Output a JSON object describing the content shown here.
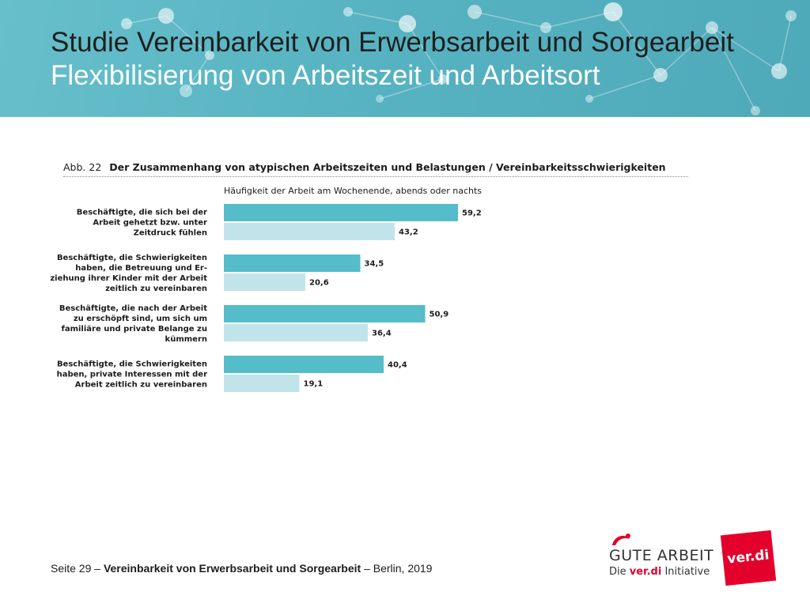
{
  "header": {
    "title": "Studie Vereinbarkeit von Erwerbsarbeit und Sorgearbeit",
    "subtitle": "Flexibilisierung von Arbeitszeit und Arbeitsort"
  },
  "figure": {
    "number": "Abb. 22",
    "caption": "Der Zusammenhang von atypischen Arbeitszeiten und Belastungen / Vereinbarkeitsschwierigkeiten"
  },
  "chart_data": {
    "type": "bar",
    "orientation": "horizontal",
    "title": "",
    "categories": [
      [
        "Beschäftigte, die sich bei der",
        "Arbeit gehetzt bzw. unter",
        "Zeitdruck fühlen"
      ],
      [
        "Beschäftigte, die Schwierigkeiten",
        "haben, die Betreuung und Er-",
        "ziehung ihrer Kinder mit der Arbeit",
        "zeitlich zu vereinbaren"
      ],
      [
        "Beschäftigte, die nach der Arbeit",
        "zu erschöpft sind, um sich um",
        "familiäre und private Belange zu",
        "kümmern"
      ],
      [
        "Beschäftigte, die Schwierigkeiten",
        "haben, private Interessen mit der",
        "Arbeit zeitlich zu vereinbaren"
      ]
    ],
    "series": [
      {
        "name": "Häufigkeit der Arbeit am Wochenende, abends oder nachts",
        "color": "#55bcc9",
        "values": [
          59.2,
          34.5,
          50.9,
          40.4
        ],
        "labels": [
          "59,2",
          "34,5",
          "50,9",
          "40,4"
        ]
      },
      {
        "color": "#c1e4ea",
        "values": [
          43.2,
          20.6,
          36.4,
          19.1
        ],
        "labels": [
          "43,2",
          "20,6",
          "36,4",
          "19,1"
        ]
      }
    ],
    "xlim": [
      0,
      100
    ],
    "grid": false,
    "axes_visible": false
  },
  "footer": {
    "page": "Seite 29",
    "separator": "–",
    "study": "Vereinbarkeit von Erwerbsarbeit und Sorgearbeit",
    "place_year": "Berlin, 2019"
  },
  "logos": {
    "gute_arbeit": {
      "icon": "gute-arbeit-swoosh-icon",
      "name": "GUTE ARBEIT",
      "die": "Die",
      "verdi": "ver.di",
      "initiative": "Initiative"
    },
    "verdi": {
      "text": "ver.di",
      "color": "#e3002b"
    }
  }
}
